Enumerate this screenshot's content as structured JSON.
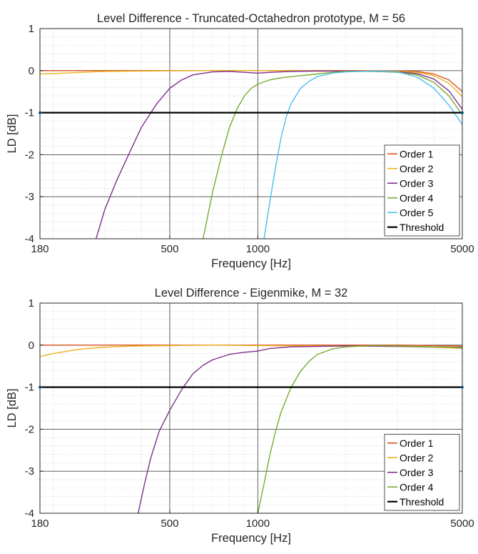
{
  "chart_data": [
    {
      "type": "line",
      "title": "Level Difference - Truncated-Octahedron prototype, M = 56",
      "xlabel": "Frequency [Hz]",
      "ylabel": "LD [dB]",
      "xscale": "log",
      "xlim": [
        180,
        5000
      ],
      "ylim": [
        -4,
        1
      ],
      "xticks": [
        180,
        500,
        1000,
        5000
      ],
      "xtick_labels": [
        "180",
        "500",
        "1000",
        "5000"
      ],
      "yticks": [
        1,
        0,
        -1,
        -2,
        -3,
        -4
      ],
      "ytick_labels": [
        "1",
        "0",
        "-1",
        "-2",
        "-3",
        "-4"
      ],
      "grid": true,
      "minor_grid": true,
      "legend_position": "bottom-right",
      "series": [
        {
          "name": "Order 1",
          "color": "#D95319",
          "points": [
            [
              180,
              0
            ],
            [
              500,
              0
            ],
            [
              1000,
              0
            ],
            [
              2000,
              0
            ],
            [
              3000,
              -0.01
            ],
            [
              3500,
              -0.02
            ],
            [
              4000,
              -0.08
            ],
            [
              4500,
              -0.22
            ],
            [
              5000,
              -0.5
            ]
          ]
        },
        {
          "name": "Order 2",
          "color": "#EDB120",
          "points": [
            [
              180,
              -0.08
            ],
            [
              200,
              -0.07
            ],
            [
              250,
              -0.04
            ],
            [
              300,
              -0.02
            ],
            [
              400,
              -0.01
            ],
            [
              600,
              0
            ],
            [
              1000,
              0
            ],
            [
              2000,
              -0.01
            ],
            [
              3000,
              -0.02
            ],
            [
              3500,
              -0.04
            ],
            [
              4000,
              -0.12
            ],
            [
              4500,
              -0.3
            ],
            [
              5000,
              -0.62
            ]
          ]
        },
        {
          "name": "Order 3",
          "color": "#7E2F8E",
          "points": [
            [
              280,
              -4
            ],
            [
              300,
              -3.3
            ],
            [
              330,
              -2.6
            ],
            [
              370,
              -1.85
            ],
            [
              400,
              -1.35
            ],
            [
              450,
              -0.8
            ],
            [
              500,
              -0.42
            ],
            [
              550,
              -0.22
            ],
            [
              600,
              -0.1
            ],
            [
              700,
              -0.03
            ],
            [
              800,
              -0.02
            ],
            [
              900,
              -0.04
            ],
            [
              1000,
              -0.06
            ],
            [
              1100,
              -0.04
            ],
            [
              1300,
              -0.02
            ],
            [
              1600,
              -0.01
            ],
            [
              2000,
              -0.01
            ],
            [
              2500,
              -0.02
            ],
            [
              3000,
              -0.03
            ],
            [
              3500,
              -0.07
            ],
            [
              4000,
              -0.2
            ],
            [
              4500,
              -0.48
            ],
            [
              5000,
              -0.92
            ]
          ]
        },
        {
          "name": "Order 4",
          "color": "#77AC30",
          "points": [
            [
              650,
              -4
            ],
            [
              700,
              -2.9
            ],
            [
              750,
              -2.05
            ],
            [
              800,
              -1.35
            ],
            [
              850,
              -0.9
            ],
            [
              900,
              -0.6
            ],
            [
              950,
              -0.42
            ],
            [
              1000,
              -0.32
            ],
            [
              1100,
              -0.22
            ],
            [
              1200,
              -0.17
            ],
            [
              1400,
              -0.12
            ],
            [
              1600,
              -0.08
            ],
            [
              1800,
              -0.04
            ],
            [
              2000,
              -0.02
            ],
            [
              2500,
              -0.02
            ],
            [
              3000,
              -0.04
            ],
            [
              3500,
              -0.1
            ],
            [
              4000,
              -0.28
            ],
            [
              4500,
              -0.6
            ],
            [
              5000,
              -1.05
            ]
          ]
        },
        {
          "name": "Order 5",
          "color": "#4DBEEE",
          "points": [
            [
              1050,
              -4
            ],
            [
              1100,
              -3.1
            ],
            [
              1150,
              -2.3
            ],
            [
              1200,
              -1.6
            ],
            [
              1250,
              -1.1
            ],
            [
              1300,
              -0.78
            ],
            [
              1400,
              -0.42
            ],
            [
              1500,
              -0.25
            ],
            [
              1600,
              -0.14
            ],
            [
              1800,
              -0.06
            ],
            [
              2000,
              -0.03
            ],
            [
              2500,
              -0.01
            ],
            [
              3000,
              -0.03
            ],
            [
              3500,
              -0.15
            ],
            [
              4000,
              -0.42
            ],
            [
              4500,
              -0.82
            ],
            [
              5000,
              -1.28
            ]
          ]
        },
        {
          "name": "Threshold",
          "color": "#000000",
          "points": [
            [
              180,
              -1
            ],
            [
              5000,
              -1
            ]
          ]
        }
      ]
    },
    {
      "type": "line",
      "title": "Level Difference - Eigenmike, M = 32",
      "xlabel": "Frequency [Hz]",
      "ylabel": "LD [dB]",
      "xscale": "log",
      "xlim": [
        180,
        5000
      ],
      "ylim": [
        -4,
        1
      ],
      "xticks": [
        180,
        500,
        1000,
        5000
      ],
      "xtick_labels": [
        "180",
        "500",
        "1000",
        "5000"
      ],
      "yticks": [
        1,
        0,
        -1,
        -2,
        -3,
        -4
      ],
      "ytick_labels": [
        "1",
        "0",
        "-1",
        "-2",
        "-3",
        "-4"
      ],
      "grid": true,
      "minor_grid": true,
      "legend_position": "bottom-right",
      "series": [
        {
          "name": "Order 1",
          "color": "#D95319",
          "points": [
            [
              180,
              0
            ],
            [
              1000,
              0
            ],
            [
              2000,
              0
            ],
            [
              3000,
              0
            ],
            [
              4000,
              -0.01
            ],
            [
              5000,
              -0.02
            ]
          ]
        },
        {
          "name": "Order 2",
          "color": "#EDB120",
          "points": [
            [
              180,
              -0.27
            ],
            [
              200,
              -0.2
            ],
            [
              230,
              -0.13
            ],
            [
              260,
              -0.08
            ],
            [
              300,
              -0.05
            ],
            [
              350,
              -0.03
            ],
            [
              400,
              -0.02
            ],
            [
              500,
              -0.01
            ],
            [
              700,
              0
            ],
            [
              1000,
              -0.01
            ],
            [
              1500,
              -0.02
            ],
            [
              2000,
              -0.02
            ],
            [
              3000,
              -0.03
            ],
            [
              4000,
              -0.05
            ],
            [
              5000,
              -0.08
            ]
          ]
        },
        {
          "name": "Order 3",
          "color": "#7E2F8E",
          "points": [
            [
              390,
              -4
            ],
            [
              410,
              -3.3
            ],
            [
              430,
              -2.7
            ],
            [
              460,
              -2.05
            ],
            [
              500,
              -1.55
            ],
            [
              550,
              -1.05
            ],
            [
              600,
              -0.68
            ],
            [
              650,
              -0.48
            ],
            [
              700,
              -0.35
            ],
            [
              800,
              -0.22
            ],
            [
              900,
              -0.17
            ],
            [
              1000,
              -0.14
            ],
            [
              1100,
              -0.08
            ],
            [
              1300,
              -0.04
            ],
            [
              1600,
              -0.03
            ],
            [
              2000,
              -0.02
            ],
            [
              3000,
              -0.03
            ],
            [
              4000,
              -0.04
            ],
            [
              5000,
              -0.05
            ]
          ]
        },
        {
          "name": "Order 4",
          "color": "#77AC30",
          "points": [
            [
              1000,
              -4
            ],
            [
              1050,
              -3.3
            ],
            [
              1100,
              -2.6
            ],
            [
              1150,
              -2.05
            ],
            [
              1200,
              -1.6
            ],
            [
              1300,
              -1.0
            ],
            [
              1400,
              -0.62
            ],
            [
              1500,
              -0.38
            ],
            [
              1600,
              -0.22
            ],
            [
              1800,
              -0.09
            ],
            [
              2000,
              -0.04
            ],
            [
              2500,
              -0.01
            ],
            [
              3000,
              -0.02
            ],
            [
              4000,
              -0.04
            ],
            [
              5000,
              -0.06
            ]
          ]
        },
        {
          "name": "Threshold",
          "color": "#000000",
          "points": [
            [
              180,
              -1
            ],
            [
              5000,
              -1
            ]
          ]
        }
      ]
    }
  ]
}
